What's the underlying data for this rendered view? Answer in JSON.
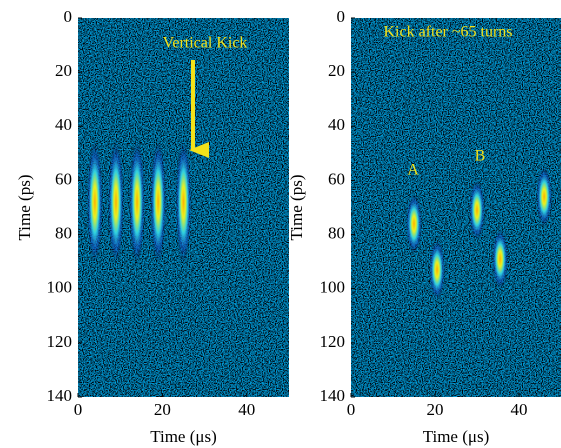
{
  "chart_data": [
    {
      "type": "heatmap",
      "xlabel": "Time (μs)",
      "ylabel": "Time (ps)",
      "xlim": [
        0,
        50
      ],
      "ylim": [
        0,
        140
      ],
      "xticks": [
        0,
        20,
        40
      ],
      "yticks": [
        0,
        20,
        40,
        60,
        80,
        100,
        120,
        140
      ],
      "x": [
        4,
        9,
        14,
        19,
        25
      ],
      "values": [
        68,
        68,
        68,
        68,
        68
      ],
      "annotations": [
        "Vertical Kick"
      ]
    },
    {
      "type": "heatmap",
      "xlabel": "Time (μs)",
      "ylabel": "Time (ps)",
      "xlim": [
        0,
        50
      ],
      "ylim": [
        0,
        140
      ],
      "xticks": [
        0,
        20,
        40
      ],
      "yticks": [
        0,
        20,
        40,
        60,
        80,
        100,
        120,
        140
      ],
      "x": [
        15,
        30,
        46,
        20.5,
        35.5
      ],
      "values": [
        76,
        71,
        66,
        93,
        89
      ],
      "annotations": [
        "Kick after ~65 turns",
        "A",
        "B"
      ]
    }
  ]
}
